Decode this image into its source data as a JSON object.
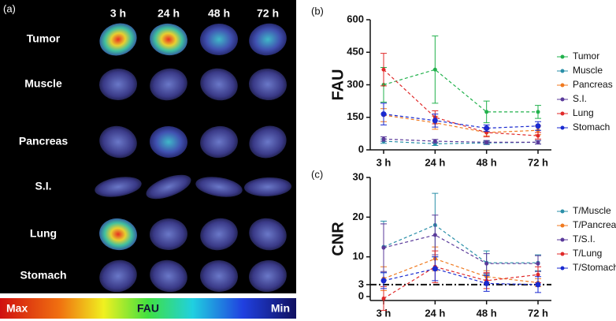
{
  "image_panel": {
    "label": "(a)",
    "columns": [
      "3 h",
      "24 h",
      "48 h",
      "72 h"
    ],
    "rows": [
      "Tumor",
      "Muscle",
      "Pancreas",
      "S.I.",
      "Lung",
      "Stomach"
    ],
    "colorbar": {
      "max": "Max",
      "title": "FAU",
      "min": "Min"
    }
  },
  "chart_data": [
    {
      "type": "line",
      "panel": "(b)",
      "ylabel": "FAU",
      "categories": [
        "3 h",
        "24 h",
        "48 h",
        "72 h"
      ],
      "ylim": [
        0,
        600
      ],
      "yticks": [
        0,
        150,
        300,
        450,
        600
      ],
      "series": [
        {
          "name": "Tumor",
          "color": "#22b14c",
          "values": [
            300,
            370,
            175,
            175
          ],
          "errors": [
            80,
            155,
            50,
            30
          ]
        },
        {
          "name": "Muscle",
          "color": "#2a8fa8",
          "values": [
            40,
            28,
            32,
            35
          ],
          "errors": [
            10,
            8,
            8,
            8
          ]
        },
        {
          "name": "Pancreas",
          "color": "#f07a20",
          "values": [
            160,
            125,
            80,
            90
          ],
          "errors": [
            30,
            30,
            15,
            20
          ]
        },
        {
          "name": "S.I.",
          "color": "#5a3a9a",
          "values": [
            50,
            40,
            35,
            35
          ],
          "errors": [
            10,
            8,
            8,
            8
          ]
        },
        {
          "name": "Lung",
          "color": "#e02a2a",
          "values": [
            370,
            150,
            80,
            65
          ],
          "errors": [
            75,
            30,
            20,
            15
          ]
        },
        {
          "name": "Stomach",
          "color": "#1a2ad0",
          "values": [
            165,
            135,
            100,
            110
          ],
          "errors": [
            50,
            30,
            15,
            20
          ]
        }
      ]
    },
    {
      "type": "line",
      "panel": "(c)",
      "ylabel": "CNR",
      "categories": [
        "3 h",
        "24 h",
        "48 h",
        "72 h"
      ],
      "ylim": [
        -1,
        30
      ],
      "yticks": [
        0,
        3,
        10,
        20,
        30
      ],
      "reference_line": 3,
      "series": [
        {
          "name": "T/Muscle",
          "color": "#2a8fa8",
          "values": [
            12.5,
            18,
            8.5,
            8.5
          ],
          "errors": [
            6.5,
            8,
            3,
            2
          ]
        },
        {
          "name": "T/Pancreas",
          "color": "#f07a20",
          "values": [
            4.5,
            9.5,
            5,
            3.5
          ],
          "errors": [
            3,
            3,
            1.5,
            1
          ]
        },
        {
          "name": "T/S.I.",
          "color": "#5a3a9a",
          "values": [
            12.3,
            15.5,
            8.3,
            8.3
          ],
          "errors": [
            6,
            5,
            2.5,
            2
          ]
        },
        {
          "name": "T/Lung",
          "color": "#e02a2a",
          "values": [
            -0.5,
            7.5,
            4,
            5.5
          ],
          "errors": [
            3,
            4,
            2,
            2
          ]
        },
        {
          "name": "T/Stomach",
          "color": "#1a2ad0",
          "values": [
            4,
            7,
            3.3,
            3
          ],
          "errors": [
            2,
            3,
            2,
            2
          ]
        }
      ]
    }
  ]
}
